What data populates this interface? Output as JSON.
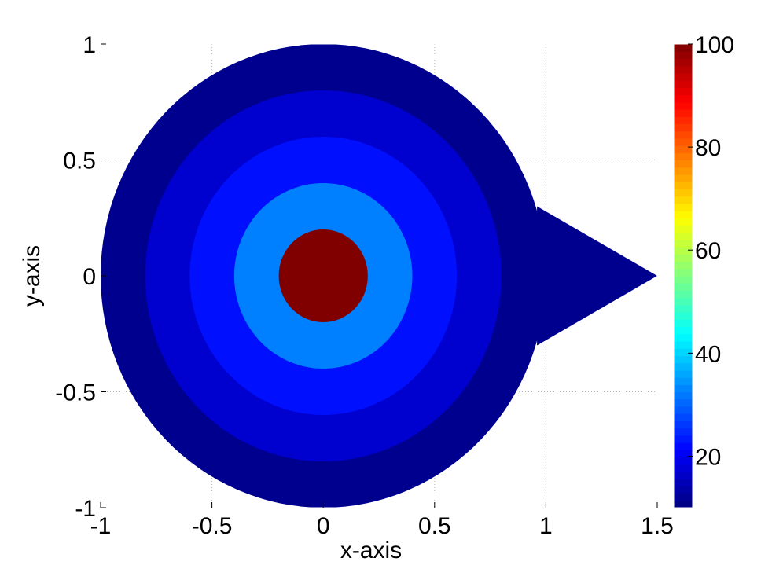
{
  "chart_data": {
    "type": "contourf",
    "title": "",
    "xlabel": "x-axis",
    "ylabel": "y-axis",
    "xlim": [
      -1,
      1.5
    ],
    "ylim": [
      -1,
      1
    ],
    "xticks": [
      "-1",
      "-0.5",
      "0",
      "0.5",
      "1",
      "1.5"
    ],
    "yticks": [
      "-1",
      "-0.5",
      "0",
      "0.5",
      "1"
    ],
    "grid": true,
    "domain": {
      "shape": "unit disk joined to a triangular spike",
      "disk": {
        "center": [
          0,
          0
        ],
        "radius": 1
      },
      "spike_vertices": [
        [
          0.96,
          0.3
        ],
        [
          1.5,
          0
        ],
        [
          0.96,
          -0.3
        ]
      ]
    },
    "contour_levels": [
      {
        "outer_radius": 1.0,
        "inner_radius": 0.8,
        "value": 10,
        "color": "#00008F"
      },
      {
        "outer_radius": 0.8,
        "inner_radius": 0.6,
        "value": 15,
        "color": "#0000CF"
      },
      {
        "outer_radius": 0.6,
        "inner_radius": 0.4,
        "value": 20,
        "color": "#0010FF"
      },
      {
        "outer_radius": 0.4,
        "inner_radius": 0.2,
        "value": 30,
        "color": "#0080FF"
      },
      {
        "outer_radius": 0.2,
        "inner_radius": 0.0,
        "value": 100,
        "color": "#800000"
      }
    ],
    "spike_value": 10,
    "spike_color": "#00008F",
    "colorbar": {
      "colormap": "jet",
      "min": 10,
      "max": 100,
      "ticks": [
        "20",
        "40",
        "60",
        "80",
        "100"
      ],
      "tick_values": [
        20,
        40,
        60,
        80,
        100
      ]
    }
  }
}
